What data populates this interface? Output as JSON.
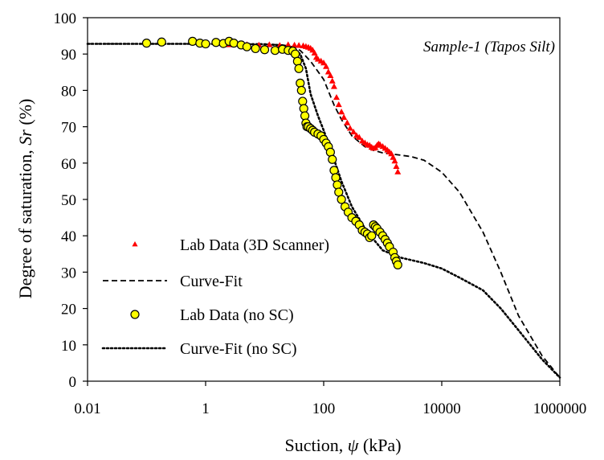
{
  "chart_data": {
    "type": "scatter",
    "annotation": "Sample-1 (Tapos Silt)",
    "xlabel": "Suction, ψ (kPa)",
    "xlabel_parts": {
      "pre": "Suction, ",
      "symbol": "ψ",
      "post": " (kPa)"
    },
    "ylabel": "Degree of saturation, Sr (%)",
    "ylabel_parts": {
      "pre": "Degree of saturation, ",
      "symbol": "Sr",
      "post": " (%)"
    },
    "xscale": "log",
    "xlim": [
      0.01,
      1000000
    ],
    "ylim": [
      0,
      100
    ],
    "x_ticks": [
      0.01,
      1,
      100,
      10000,
      1000000
    ],
    "x_tick_labels": [
      "0.01",
      "1",
      "100",
      "10000",
      "1000000"
    ],
    "y_ticks": [
      0,
      10,
      20,
      30,
      40,
      50,
      60,
      70,
      80,
      90,
      100
    ],
    "y_tick_labels": [
      "0",
      "10",
      "20",
      "30",
      "40",
      "50",
      "60",
      "70",
      "80",
      "90",
      "100"
    ],
    "grid": false,
    "legend_position": "lower-left",
    "series": [
      {
        "name": "Lab Data (3D Scanner)",
        "kind": "scatter",
        "marker": "triangle",
        "color": "#ff0000",
        "x": [
          2.5,
          5,
          8,
          12,
          18,
          25,
          32,
          38,
          45,
          50,
          55,
          60,
          65,
          70,
          75,
          80,
          90,
          100,
          110,
          120,
          130,
          140,
          150,
          165,
          180,
          200,
          220,
          250,
          280,
          320,
          360,
          400,
          450,
          500,
          550,
          600,
          650,
          700,
          750,
          800,
          850,
          900,
          1000,
          1100,
          1200,
          1300,
          1400,
          1500,
          1600,
          1700,
          1800
        ],
        "y": [
          92.5,
          92.5,
          92.4,
          92.5,
          92.3,
          92.5,
          92.4,
          92.3,
          92.2,
          92.0,
          91.8,
          91.5,
          91.0,
          90.2,
          89.0,
          88.5,
          88.0,
          87.5,
          86.5,
          85.0,
          84.0,
          82.5,
          81.0,
          78.0,
          76.0,
          74.0,
          72.5,
          71.0,
          69.5,
          68.5,
          67.5,
          67.0,
          66.0,
          65.5,
          65.0,
          64.8,
          64.3,
          64.0,
          64.2,
          64.8,
          65.2,
          65.0,
          64.5,
          64.0,
          63.5,
          63.0,
          62.5,
          61.5,
          60.5,
          59.0,
          57.5
        ]
      },
      {
        "name": "Curve-Fit",
        "kind": "line",
        "style": "dashed",
        "color": "#000000",
        "x": [
          0.01,
          0.1,
          1,
          10,
          20,
          30,
          40,
          60,
          100,
          150,
          200,
          300,
          500,
          700,
          1000,
          2000,
          3000,
          5000,
          10000,
          20000,
          50000,
          100000,
          200000,
          500000,
          1000000
        ],
        "y": [
          92.8,
          92.8,
          92.8,
          92.7,
          92.5,
          92.0,
          91.0,
          88.0,
          83.0,
          76.0,
          72.0,
          67.5,
          64.5,
          63.5,
          62.8,
          62.2,
          61.8,
          60.8,
          57.5,
          52.0,
          41.0,
          30.0,
          18.0,
          7.0,
          1.0
        ]
      },
      {
        "name": "Lab Data (no SC)",
        "kind": "scatter",
        "marker": "circle",
        "color": "#ffff00",
        "x": [
          0.1,
          0.18,
          0.6,
          0.8,
          1.0,
          1.5,
          2,
          2.5,
          3,
          4,
          5,
          7,
          10,
          15,
          20,
          25,
          30,
          33,
          36,
          38,
          40,
          42,
          44,
          46,
          48,
          50,
          52,
          55,
          60,
          65,
          70,
          80,
          90,
          100,
          110,
          120,
          130,
          140,
          150,
          160,
          170,
          180,
          200,
          230,
          260,
          300,
          350,
          400,
          450,
          500,
          550,
          600,
          650,
          700,
          750,
          800,
          900,
          1000,
          1100,
          1200,
          1300,
          1500,
          1600,
          1700,
          1800
        ],
        "y": [
          93.0,
          93.3,
          93.5,
          93.0,
          92.8,
          93.2,
          92.9,
          93.5,
          93.0,
          92.5,
          92.0,
          91.5,
          91.2,
          91.0,
          91.3,
          91.0,
          90.8,
          90.0,
          88.0,
          86.0,
          82.0,
          80.0,
          77.0,
          75.0,
          73.0,
          71.0,
          70.0,
          70.0,
          69.5,
          69.0,
          68.5,
          68.0,
          67.5,
          66.5,
          65.5,
          64.5,
          63.0,
          61.0,
          58.0,
          56.0,
          54.0,
          52.0,
          50.0,
          48.0,
          46.5,
          45.0,
          44.0,
          43.0,
          41.5,
          41.0,
          40.5,
          39.5,
          40.0,
          43.0,
          42.5,
          42.0,
          41.0,
          40.0,
          39.0,
          38.0,
          37.0,
          35.5,
          34.0,
          33.0,
          32.0
        ]
      },
      {
        "name": "Curve-Fit (no SC)",
        "kind": "line",
        "style": "dotted",
        "color": "#000000",
        "x": [
          0.01,
          0.1,
          1,
          10,
          20,
          30,
          40,
          50,
          60,
          80,
          100,
          150,
          200,
          300,
          500,
          700,
          1000,
          2000,
          5000,
          10000,
          20000,
          50000,
          100000,
          200000,
          500000,
          1000000
        ],
        "y": [
          92.8,
          92.8,
          92.8,
          92.7,
          92.4,
          91.5,
          90.0,
          86.0,
          79.0,
          73.0,
          69.0,
          61.0,
          55.0,
          48.0,
          42.0,
          39.0,
          36.0,
          34.0,
          32.5,
          31.0,
          28.5,
          25.0,
          20.0,
          14.0,
          6.0,
          1.0
        ]
      }
    ]
  }
}
